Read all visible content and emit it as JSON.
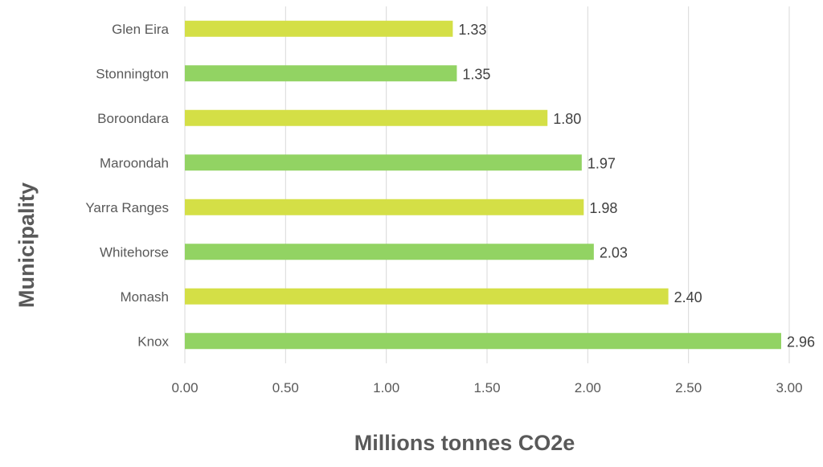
{
  "chart_data": {
    "type": "bar",
    "orientation": "horizontal",
    "categories": [
      "Glen Eira",
      "Stonnington",
      "Boroondara",
      "Maroondah",
      "Yarra Ranges",
      "Whitehorse",
      "Monash",
      "Knox"
    ],
    "values": [
      1.33,
      1.35,
      1.8,
      1.97,
      1.98,
      2.03,
      2.4,
      2.96
    ],
    "data_labels": [
      "1.33",
      "1.35",
      "1.80",
      "1.97",
      "1.98",
      "2.03",
      "2.40",
      "2.96"
    ],
    "bar_colors": [
      "#d4df46",
      "#92d363",
      "#d4df46",
      "#92d363",
      "#d4df46",
      "#92d363",
      "#d4df46",
      "#92d363"
    ],
    "xlabel": "Millions tonnes CO2e",
    "ylabel": "Municipality",
    "xlim": [
      0,
      3
    ],
    "xticks": [
      "0.00",
      "0.50",
      "1.00",
      "1.50",
      "2.00",
      "2.50",
      "3.00"
    ],
    "grid": "vertical",
    "legend": "none"
  }
}
